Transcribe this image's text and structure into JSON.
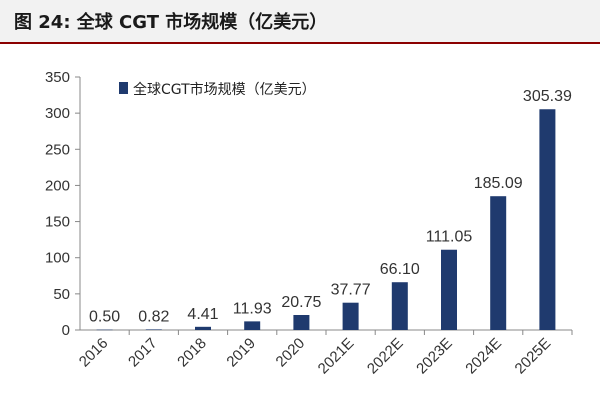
{
  "header": {
    "title": "图 24:  全球 CGT 市场规模（亿美元）"
  },
  "chart_data": {
    "type": "bar",
    "title": "图 24:  全球 CGT 市场规模（亿美元）",
    "xlabel": "",
    "ylabel": "",
    "categories": [
      "2016",
      "2017",
      "2018",
      "2019",
      "2020",
      "2021E",
      "2022E",
      "2023E",
      "2024E",
      "2025E"
    ],
    "series": [
      {
        "name": "全球CGT市场规模（亿美元）",
        "values": [
          0.5,
          0.82,
          4.41,
          11.93,
          20.75,
          37.77,
          66.1,
          111.05,
          185.09,
          305.39
        ],
        "labels": [
          "0.50",
          "0.82",
          "4.41",
          "11.93",
          "20.75",
          "37.77",
          "66.10",
          "111.05",
          "185.09",
          "305.39"
        ],
        "color": "#1f3a6e"
      }
    ],
    "ylim": [
      0,
      350
    ],
    "yticks": [
      "0",
      "50",
      "100",
      "150",
      "200",
      "250",
      "300",
      "350"
    ],
    "grid": false,
    "legend": "top-left"
  }
}
